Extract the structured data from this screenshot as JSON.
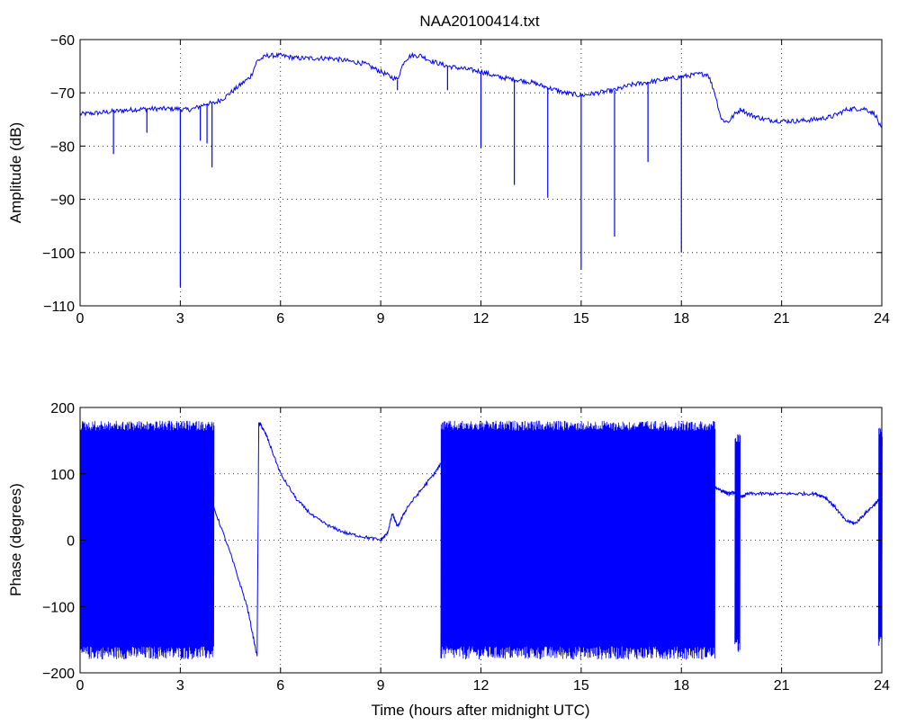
{
  "chart_data": [
    {
      "type": "line",
      "title": "NAA20100414.txt",
      "xlabel": "",
      "ylabel": "Amplitude (dB)",
      "xlim": [
        0,
        24
      ],
      "ylim": [
        -110,
        -60
      ],
      "xticks": [
        0,
        3,
        6,
        9,
        12,
        15,
        18,
        21,
        24
      ],
      "yticks": [
        -110,
        -100,
        -90,
        -80,
        -70,
        -60
      ],
      "xtick_labels": [
        "0",
        "3",
        "6",
        "9",
        "12",
        "15",
        "18",
        "21",
        "24"
      ],
      "ytick_labels": [
        "−110",
        "−100",
        "−90",
        "−80",
        "−70",
        "−60"
      ],
      "grid": true,
      "color": "#0000ff",
      "series": [
        {
          "x": [
            0,
            0.5,
            1.0,
            1.5,
            2.0,
            2.5,
            2.9,
            3.2,
            3.4,
            3.6,
            3.8,
            4.0,
            4.3,
            4.6,
            4.9,
            5.1,
            5.3,
            5.6,
            6.0,
            6.5,
            7.0,
            7.5,
            8.0,
            8.5,
            9.0,
            9.3,
            9.5,
            9.7,
            9.9,
            10.2,
            10.5,
            11.0,
            11.5,
            12.0,
            12.5,
            13.0,
            13.5,
            14.0,
            14.5,
            15.0,
            15.5,
            16.0,
            16.5,
            17.0,
            17.5,
            18.0,
            18.5,
            18.8,
            19.0,
            19.2,
            19.4,
            19.6,
            19.8,
            20.0,
            20.5,
            21.0,
            21.5,
            22.0,
            22.5,
            23.0,
            23.5,
            23.8,
            24.0
          ],
          "y": [
            -74,
            -73.8,
            -73.5,
            -73.2,
            -73,
            -73,
            -73,
            -73.2,
            -73,
            -72.5,
            -72,
            -72,
            -71,
            -69.5,
            -68,
            -67,
            -64,
            -63,
            -63,
            -63.5,
            -63.5,
            -63.5,
            -64,
            -64.5,
            -66,
            -67,
            -67.5,
            -64,
            -63,
            -63,
            -64,
            -65,
            -65.5,
            -66,
            -67,
            -67.5,
            -68,
            -69,
            -70,
            -70.5,
            -70,
            -69.5,
            -68.5,
            -68,
            -67.5,
            -67,
            -66.5,
            -66.5,
            -70,
            -75,
            -75.5,
            -74,
            -73,
            -74,
            -75,
            -75.3,
            -75.3,
            -75,
            -74.5,
            -73,
            -73,
            -74,
            -77
          ]
        }
      ],
      "dips": [
        {
          "x": 1.0,
          "min": -81.5
        },
        {
          "x": 2.0,
          "min": -77.5
        },
        {
          "x": 3.0,
          "min": -106.5
        },
        {
          "x": 3.6,
          "min": -79.0
        },
        {
          "x": 3.8,
          "min": -79.5
        },
        {
          "x": 3.95,
          "min": -84.0
        },
        {
          "x": 9.5,
          "min": -69.5
        },
        {
          "x": 11.0,
          "min": -69.5
        },
        {
          "x": 12.0,
          "min": -80.3
        },
        {
          "x": 13.0,
          "min": -87.3
        },
        {
          "x": 14.0,
          "min": -89.7
        },
        {
          "x": 15.0,
          "min": -103.2
        },
        {
          "x": 16.0,
          "min": -97.0
        },
        {
          "x": 17.0,
          "min": -83.0
        },
        {
          "x": 18.0,
          "min": -100.0
        }
      ]
    },
    {
      "type": "line",
      "title": "",
      "xlabel": "Time (hours after midnight UTC)",
      "ylabel": "Phase (degrees)",
      "xlim": [
        0,
        24
      ],
      "ylim": [
        -200,
        200
      ],
      "xticks": [
        0,
        3,
        6,
        9,
        12,
        15,
        18,
        21,
        24
      ],
      "yticks": [
        -200,
        -100,
        0,
        100,
        200
      ],
      "xtick_labels": [
        "0",
        "3",
        "6",
        "9",
        "12",
        "15",
        "18",
        "21",
        "24"
      ],
      "ytick_labels": [
        "−200",
        "−100",
        "0",
        "100",
        "200"
      ],
      "grid": true,
      "color": "#0000ff",
      "wrapped_regions": [
        {
          "x_start": 0.0,
          "x_end": 4.0,
          "min": -180,
          "max": 180
        },
        {
          "x_start": 10.8,
          "x_end": 19.0,
          "min": -180,
          "max": 180
        },
        {
          "x_start": 19.6,
          "x_end": 19.75,
          "min": -170,
          "max": 160
        },
        {
          "x_start": 23.9,
          "x_end": 24.0,
          "min": -165,
          "max": 170
        }
      ],
      "series": [
        {
          "x": [
            4.0,
            4.5,
            5.0,
            5.3,
            5.35,
            5.4,
            5.6,
            6.0,
            6.5,
            7.0,
            7.5,
            8.0,
            8.5,
            9.0,
            9.2,
            9.35,
            9.5,
            9.8,
            10.2,
            10.6,
            10.8
          ],
          "y": [
            50,
            -20,
            -100,
            -175,
            175,
            175,
            155,
            100,
            60,
            35,
            20,
            10,
            5,
            0,
            10,
            40,
            20,
            50,
            75,
            100,
            115
          ]
        },
        {
          "x": [
            19.0,
            19.2,
            19.4,
            19.6,
            19.8,
            20.0,
            20.5,
            21.0,
            21.5,
            22.0,
            22.3,
            22.6,
            22.9,
            23.2,
            23.5,
            23.8,
            23.9
          ],
          "y": [
            80,
            75,
            70,
            72,
            65,
            70,
            70,
            70,
            70,
            70,
            65,
            50,
            30,
            25,
            40,
            55,
            60
          ]
        }
      ]
    }
  ]
}
